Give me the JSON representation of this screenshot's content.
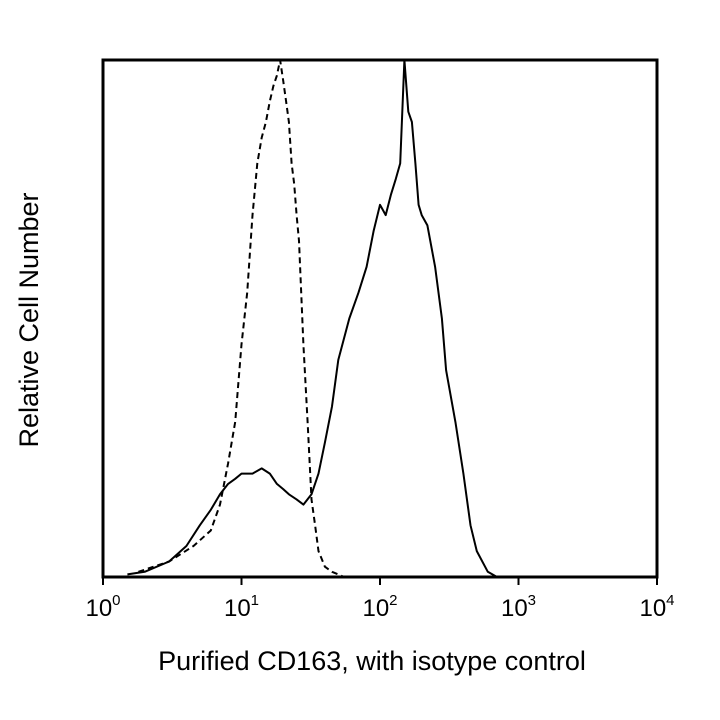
{
  "chart_data": {
    "type": "area",
    "title": "",
    "xlabel": "Purified CD163, with isotype control",
    "ylabel": "Relative Cell Number",
    "x_scale": "log",
    "xlim": [
      1,
      10000
    ],
    "ylim": [
      0,
      100
    ],
    "grid": false,
    "legend": "none",
    "x_ticks": [
      {
        "base": "10",
        "exp": "0",
        "value": 1
      },
      {
        "base": "10",
        "exp": "1",
        "value": 10
      },
      {
        "base": "10",
        "exp": "2",
        "value": 100
      },
      {
        "base": "10",
        "exp": "3",
        "value": 1000
      },
      {
        "base": "10",
        "exp": "4",
        "value": 10000
      }
    ],
    "series": [
      {
        "style": "dashed",
        "color": "#000000",
        "x": [
          1.8,
          3,
          4.5,
          6,
          7,
          8,
          9,
          10,
          11,
          12,
          13,
          14,
          15,
          16,
          17,
          18,
          19,
          20,
          21,
          22,
          23,
          24,
          25,
          26,
          27,
          28,
          30,
          32,
          34,
          36,
          40,
          45,
          50,
          55
        ],
        "y": [
          1,
          3,
          6,
          9,
          14,
          22,
          30,
          45,
          55,
          70,
          80,
          85,
          88,
          92,
          95,
          97,
          100,
          96,
          92,
          88,
          80,
          76,
          70,
          65,
          55,
          45,
          30,
          15,
          10,
          5,
          2,
          1,
          0.5,
          0
        ]
      },
      {
        "style": "solid",
        "color": "#000000",
        "x": [
          1.5,
          2,
          3,
          4,
          5,
          6,
          7,
          8,
          9,
          10,
          12,
          14,
          16,
          18,
          20,
          22,
          25,
          28,
          32,
          36,
          40,
          45,
          50,
          60,
          70,
          80,
          90,
          100,
          110,
          120,
          130,
          140,
          150,
          160,
          170,
          180,
          190,
          200,
          220,
          250,
          280,
          300,
          350,
          400,
          450,
          500,
          600,
          700
        ],
        "y": [
          0.5,
          1,
          3,
          6,
          10,
          13,
          16,
          18,
          19,
          20,
          20,
          21,
          20,
          18,
          17,
          16,
          15,
          14,
          16,
          20,
          26,
          33,
          42,
          50,
          55,
          60,
          67,
          72,
          70,
          74,
          77,
          80,
          100,
          90,
          88,
          80,
          72,
          70,
          68,
          60,
          50,
          40,
          30,
          20,
          10,
          5,
          1,
          0
        ]
      }
    ]
  }
}
